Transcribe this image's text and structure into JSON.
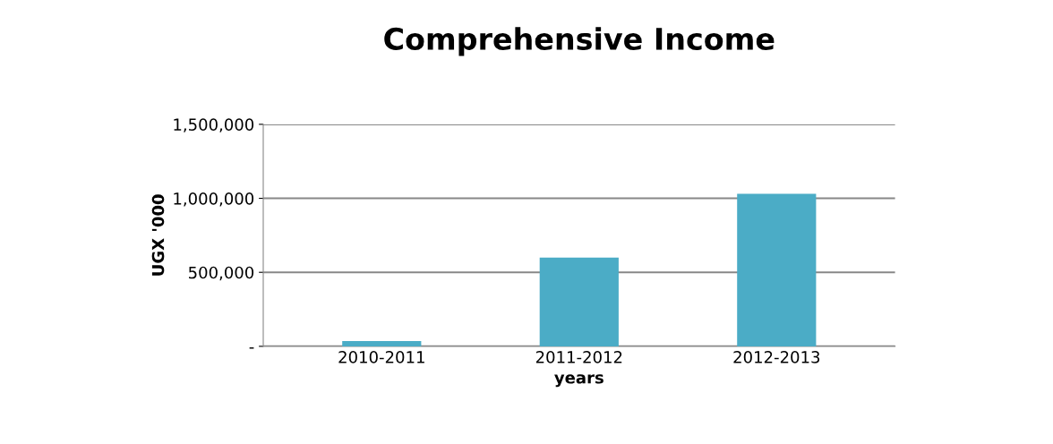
{
  "chart_data": {
    "type": "bar",
    "title": "Comprehensive Income",
    "xlabel": "years",
    "ylabel": "UGX '000",
    "categories": [
      "2010-2011",
      "2011-2012",
      "2012-2013"
    ],
    "values": [
      35000,
      600000,
      1030000
    ],
    "color": "#4bacc6",
    "ylim": [
      0,
      1500000
    ],
    "yticks": [
      {
        "value": 0,
        "label": "-"
      },
      {
        "value": 500000,
        "label": "500,000"
      },
      {
        "value": 1000000,
        "label": "1,000,000"
      },
      {
        "value": 1500000,
        "label": "1,500,000"
      }
    ],
    "grid": "y",
    "legend": false
  }
}
